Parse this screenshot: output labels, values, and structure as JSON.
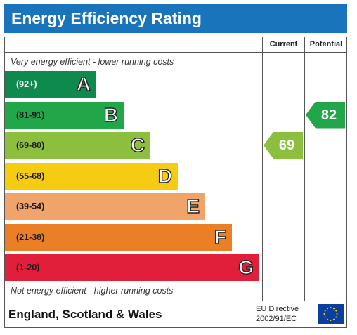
{
  "title": "Energy Efficiency Rating",
  "columns": {
    "current": "Current",
    "potential": "Potential"
  },
  "top_caption": "Very energy efficient - lower running costs",
  "bottom_caption": "Not energy efficient - higher running costs",
  "footer": {
    "region": "England, Scotland & Wales",
    "directive_line1": "EU Directive",
    "directive_line2": "2002/91/EC"
  },
  "chart_data": {
    "type": "bar",
    "categories": [
      "A",
      "B",
      "C",
      "D",
      "E",
      "F",
      "G"
    ],
    "ranges": [
      "(92+)",
      "(81-91)",
      "(69-80)",
      "(55-68)",
      "(39-54)",
      "(21-38)",
      "(1-20)"
    ],
    "colors": [
      "#0f8a4f",
      "#22a64a",
      "#8cbf3e",
      "#f5cc12",
      "#f0a46a",
      "#ea7f26",
      "#e21f3a"
    ],
    "current": {
      "value": 69,
      "band": "C",
      "color": "#8cbf3e"
    },
    "potential": {
      "value": 82,
      "band": "B",
      "color": "#22a64a"
    }
  }
}
